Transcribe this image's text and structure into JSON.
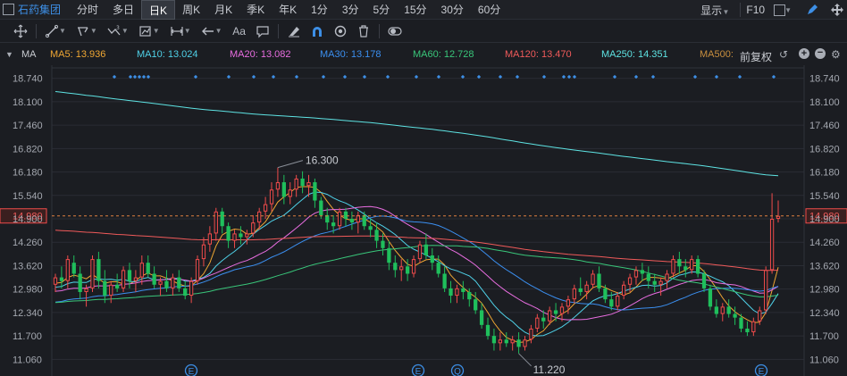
{
  "stock": {
    "name": "石药集团"
  },
  "period_tabs": [
    "分时",
    "多日",
    "日K",
    "周K",
    "月K",
    "季K",
    "年K",
    "1分",
    "3分",
    "5分",
    "15分",
    "30分",
    "60分"
  ],
  "active_period": "日K",
  "top_right": {
    "display_label": "显示",
    "f10_label": "F10"
  },
  "toolbar": {
    "icons": [
      "crosshair-icon",
      "line-tool-icon",
      "channel-tool-icon",
      "wave-tool-icon",
      "indicator-tool-icon",
      "range-tool-icon",
      "arrow-tool-icon",
      "text-tool-icon",
      "comment-tool-icon",
      "eraser-icon",
      "magnet-icon",
      "eye-icon",
      "trash-icon",
      "toggle-icon"
    ],
    "text_tool_label": "Aa"
  },
  "ma_bar": {
    "label": "MA",
    "items": [
      {
        "name": "MA5",
        "value": "13.936",
        "color": "#f0a733"
      },
      {
        "name": "MA10",
        "value": "13.024",
        "color": "#4fd1e8"
      },
      {
        "name": "MA20",
        "value": "13.082",
        "color": "#e86de0"
      },
      {
        "name": "MA30",
        "value": "13.178",
        "color": "#3b8ff0"
      },
      {
        "name": "MA60",
        "value": "12.728",
        "color": "#39c67a"
      },
      {
        "name": "MA120",
        "value": "13.470",
        "color": "#f05a5a"
      },
      {
        "name": "MA250",
        "value": "14.351",
        "color": "#5ee3e3"
      },
      {
        "name": "MA500",
        "value": "",
        "color": "#c98f3e"
      }
    ],
    "adjust_label": "前复权"
  },
  "colors": {
    "up": "#f04b4b",
    "down": "#1fbf5c",
    "ref_line": "#e08040",
    "accent": "#3d8fe6"
  },
  "chart_data": {
    "type": "candlestick",
    "y_ticks": [
      "18.740",
      "18.100",
      "17.460",
      "16.820",
      "16.180",
      "15.540",
      "14.900",
      "14.260",
      "13.620",
      "12.980",
      "12.340",
      "11.700",
      "11.060"
    ],
    "ylim": [
      10.8,
      19.05
    ],
    "reference_price": "14.980",
    "high_label": "16.300",
    "low_label": "11.220",
    "event_marker_label": "E",
    "event_markers": [
      "E",
      "E",
      "Q",
      "E"
    ],
    "ohlc": [
      [
        13.1,
        13.4,
        12.9,
        13.3
      ],
      [
        13.3,
        13.6,
        13.0,
        13.2
      ],
      [
        13.2,
        13.9,
        13.0,
        13.8
      ],
      [
        13.7,
        13.9,
        13.3,
        13.4
      ],
      [
        13.4,
        13.6,
        12.7,
        12.9
      ],
      [
        12.9,
        13.1,
        12.5,
        13.0
      ],
      [
        13.0,
        13.9,
        12.9,
        13.8
      ],
      [
        13.8,
        14.0,
        13.0,
        13.2
      ],
      [
        13.2,
        13.5,
        12.6,
        12.8
      ],
      [
        12.8,
        13.2,
        12.6,
        13.1
      ],
      [
        13.1,
        13.4,
        12.9,
        13.0
      ],
      [
        13.0,
        13.6,
        12.9,
        13.5
      ],
      [
        13.5,
        13.7,
        13.0,
        13.2
      ],
      [
        13.2,
        13.5,
        12.9,
        13.3
      ],
      [
        13.3,
        13.9,
        13.1,
        13.7
      ],
      [
        13.7,
        13.9,
        13.3,
        13.4
      ],
      [
        13.4,
        13.6,
        13.0,
        13.1
      ],
      [
        13.1,
        13.3,
        12.8,
        13.2
      ],
      [
        13.2,
        13.5,
        12.9,
        13.0
      ],
      [
        13.0,
        13.4,
        12.8,
        13.3
      ],
      [
        13.3,
        13.5,
        12.9,
        13.0
      ],
      [
        13.0,
        13.2,
        12.7,
        12.8
      ],
      [
        12.8,
        13.3,
        12.6,
        13.2
      ],
      [
        13.2,
        13.9,
        13.1,
        13.8
      ],
      [
        13.8,
        14.4,
        13.6,
        14.2
      ],
      [
        14.2,
        14.7,
        14.0,
        14.5
      ],
      [
        14.5,
        15.2,
        14.3,
        15.1
      ],
      [
        15.1,
        15.2,
        14.5,
        14.7
      ],
      [
        14.7,
        14.8,
        14.1,
        14.3
      ],
      [
        14.3,
        14.6,
        14.1,
        14.5
      ],
      [
        14.5,
        14.7,
        14.2,
        14.4
      ],
      [
        14.4,
        14.6,
        14.2,
        14.5
      ],
      [
        14.5,
        15.0,
        14.4,
        14.8
      ],
      [
        14.8,
        15.2,
        14.6,
        15.1
      ],
      [
        15.1,
        15.5,
        14.9,
        15.3
      ],
      [
        15.3,
        15.9,
        15.1,
        15.7
      ],
      [
        15.7,
        16.3,
        15.5,
        15.9
      ],
      [
        15.9,
        16.1,
        15.3,
        15.5
      ],
      [
        15.5,
        15.9,
        15.3,
        15.7
      ],
      [
        15.7,
        16.1,
        15.5,
        16.0
      ],
      [
        16.0,
        16.2,
        15.6,
        15.8
      ],
      [
        15.8,
        16.1,
        15.5,
        15.9
      ],
      [
        15.9,
        16.0,
        15.2,
        15.4
      ],
      [
        15.4,
        15.5,
        14.9,
        15.0
      ],
      [
        15.0,
        15.2,
        14.6,
        14.8
      ],
      [
        14.8,
        15.0,
        14.5,
        14.7
      ],
      [
        14.7,
        15.2,
        14.6,
        15.1
      ],
      [
        15.1,
        15.2,
        14.7,
        14.9
      ],
      [
        14.9,
        15.1,
        14.6,
        14.8
      ],
      [
        14.8,
        15.1,
        14.5,
        15.0
      ],
      [
        15.0,
        15.1,
        14.6,
        14.7
      ],
      [
        14.7,
        14.9,
        14.4,
        14.6
      ],
      [
        14.6,
        14.8,
        14.1,
        14.3
      ],
      [
        14.3,
        14.5,
        13.9,
        14.1
      ],
      [
        14.1,
        14.3,
        13.5,
        13.7
      ],
      [
        13.7,
        13.9,
        13.3,
        13.5
      ],
      [
        13.5,
        13.8,
        13.2,
        13.6
      ],
      [
        13.6,
        13.8,
        13.2,
        13.4
      ],
      [
        13.4,
        13.9,
        13.3,
        13.8
      ],
      [
        13.8,
        14.3,
        13.7,
        14.2
      ],
      [
        14.2,
        14.5,
        13.8,
        13.9
      ],
      [
        13.9,
        14.1,
        13.5,
        13.7
      ],
      [
        13.7,
        13.9,
        13.3,
        13.4
      ],
      [
        13.4,
        13.6,
        12.9,
        13.0
      ],
      [
        13.0,
        13.2,
        12.6,
        12.8
      ],
      [
        12.8,
        13.1,
        12.6,
        13.0
      ],
      [
        13.0,
        13.2,
        12.7,
        12.9
      ],
      [
        12.9,
        13.0,
        12.5,
        12.7
      ],
      [
        12.7,
        12.9,
        12.3,
        12.4
      ],
      [
        12.4,
        12.6,
        11.9,
        12.0
      ],
      [
        12.0,
        12.2,
        11.6,
        11.7
      ],
      [
        11.7,
        11.9,
        11.3,
        11.5
      ],
      [
        11.5,
        11.8,
        11.3,
        11.6
      ],
      [
        11.6,
        11.8,
        11.4,
        11.5
      ],
      [
        11.5,
        11.7,
        11.3,
        11.6
      ],
      [
        11.6,
        11.8,
        11.22,
        11.4
      ],
      [
        11.4,
        11.7,
        11.3,
        11.6
      ],
      [
        11.6,
        12.0,
        11.5,
        11.9
      ],
      [
        11.9,
        12.3,
        11.8,
        12.2
      ],
      [
        12.2,
        12.4,
        11.9,
        12.1
      ],
      [
        12.1,
        12.5,
        12.0,
        12.4
      ],
      [
        12.4,
        12.6,
        12.1,
        12.3
      ],
      [
        12.3,
        12.6,
        12.1,
        12.5
      ],
      [
        12.5,
        12.8,
        12.3,
        12.7
      ],
      [
        12.7,
        13.1,
        12.6,
        13.0
      ],
      [
        13.0,
        13.3,
        12.8,
        12.9
      ],
      [
        12.9,
        13.2,
        12.7,
        13.1
      ],
      [
        13.1,
        13.5,
        13.0,
        13.4
      ],
      [
        13.4,
        13.6,
        12.9,
        13.0
      ],
      [
        13.0,
        13.1,
        12.6,
        12.7
      ],
      [
        12.7,
        12.9,
        12.4,
        12.5
      ],
      [
        12.5,
        12.9,
        12.4,
        12.8
      ],
      [
        12.8,
        13.2,
        12.7,
        13.1
      ],
      [
        13.1,
        13.4,
        12.9,
        13.3
      ],
      [
        13.3,
        13.6,
        13.1,
        13.5
      ],
      [
        13.5,
        13.7,
        13.2,
        13.4
      ],
      [
        13.4,
        13.6,
        13.0,
        13.2
      ],
      [
        13.2,
        13.4,
        12.9,
        13.1
      ],
      [
        13.1,
        13.3,
        12.8,
        13.2
      ],
      [
        13.2,
        13.5,
        13.0,
        13.4
      ],
      [
        13.4,
        13.9,
        13.3,
        13.8
      ],
      [
        13.8,
        14.0,
        13.4,
        13.6
      ],
      [
        13.6,
        13.8,
        13.3,
        13.5
      ],
      [
        13.5,
        13.9,
        13.4,
        13.8
      ],
      [
        13.8,
        13.9,
        13.3,
        13.4
      ],
      [
        13.4,
        13.5,
        12.9,
        13.0
      ],
      [
        13.0,
        13.1,
        12.4,
        12.5
      ],
      [
        12.5,
        12.7,
        12.2,
        12.3
      ],
      [
        12.3,
        12.6,
        12.1,
        12.5
      ],
      [
        12.5,
        12.7,
        12.2,
        12.3
      ],
      [
        12.3,
        12.5,
        12.0,
        12.2
      ],
      [
        12.2,
        12.3,
        11.8,
        11.9
      ],
      [
        11.9,
        12.1,
        11.7,
        11.8
      ],
      [
        11.8,
        12.2,
        11.7,
        12.1
      ],
      [
        12.1,
        12.5,
        12.0,
        12.4
      ],
      [
        12.4,
        13.6,
        12.3,
        13.5
      ],
      [
        13.5,
        15.6,
        13.4,
        14.9
      ],
      [
        14.9,
        15.4,
        14.8,
        14.98
      ]
    ]
  }
}
